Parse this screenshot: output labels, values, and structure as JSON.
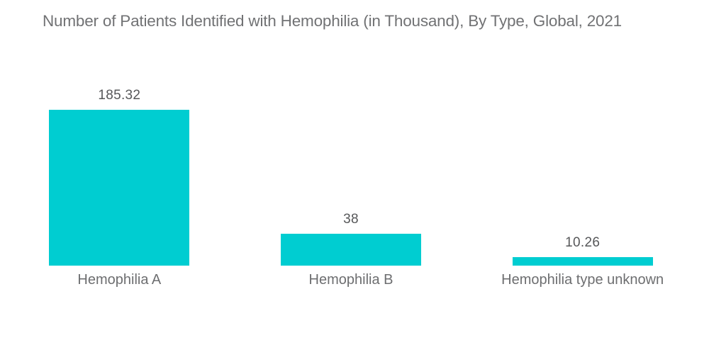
{
  "chart_data": {
    "type": "bar",
    "title": "Number of Patients Identified with Hemophilia (in Thousand), By Type, Global, 2021",
    "categories": [
      "Hemophilia A",
      "Hemophilia B",
      "Hemophilia type unknown"
    ],
    "values": [
      185.32,
      38,
      10.26
    ],
    "value_labels": [
      "185.32",
      "38",
      "10.26"
    ],
    "xlabel": "",
    "ylabel": "",
    "ylim": [
      0,
      185.32
    ],
    "grid": false,
    "legend": "none",
    "bar_color": "#00CDD1",
    "title_color": "#717274",
    "value_label_color": "#565759",
    "category_label_color": "#6D6E70",
    "background_color": "#FFFFFF"
  }
}
